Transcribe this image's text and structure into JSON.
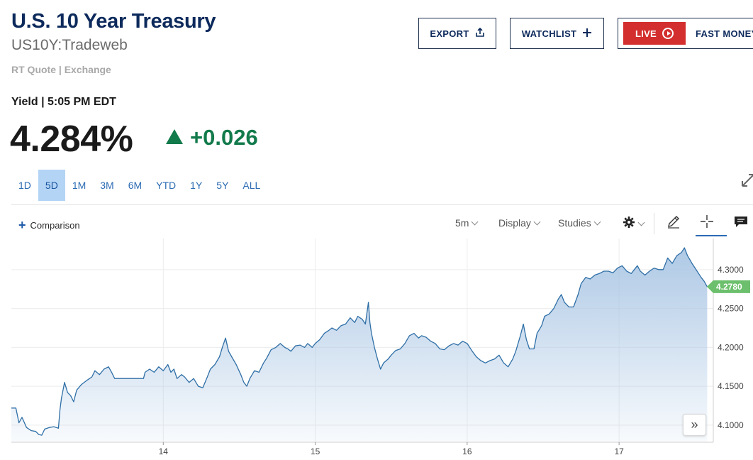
{
  "header": {
    "title": "U.S. 10 Year Treasury",
    "subtitle": "US10Y:Tradeweb",
    "quote_source": "RT Quote | Exchange"
  },
  "actions": {
    "export_label": "EXPORT",
    "watchlist_label": "WATCHLIST",
    "live_label": "LIVE",
    "fast_money_label": "FAST MONEY"
  },
  "quote": {
    "yield_label": "Yield | 5:05 PM EDT",
    "price": "4.284%",
    "change": "+0.026",
    "change_color": "#127a4b"
  },
  "range_tabs": [
    {
      "label": "1D",
      "active": false
    },
    {
      "label": "5D",
      "active": true
    },
    {
      "label": "1M",
      "active": false
    },
    {
      "label": "3M",
      "active": false
    },
    {
      "label": "6M",
      "active": false
    },
    {
      "label": "YTD",
      "active": false
    },
    {
      "label": "1Y",
      "active": false
    },
    {
      "label": "5Y",
      "active": false
    },
    {
      "label": "ALL",
      "active": false
    }
  ],
  "chart_toolbar": {
    "comparison_label": "Comparison",
    "interval_label": "5m",
    "display_label": "Display",
    "studies_label": "Studies",
    "icons": [
      "gear-icon",
      "pencil-icon",
      "crosshair-icon",
      "comment-icon"
    ]
  },
  "chart_data": {
    "type": "area",
    "x_tick_labels": [
      "14",
      "15",
      "16",
      "17"
    ],
    "y_tick_labels": [
      "4.3000",
      "4.2500",
      "4.2000",
      "4.1500",
      "4.1000"
    ],
    "y_ticks": [
      4.3,
      4.25,
      4.2,
      4.15,
      4.1
    ],
    "ylim": [
      4.078,
      4.34
    ],
    "xlim": [
      0,
      4.62
    ],
    "day_boundaries": [
      1.0,
      2.0,
      3.0,
      4.0
    ],
    "last_price_label": "4.2780",
    "last_price": 4.278,
    "line_color": "#2f6fa6",
    "fill_color": "#aac6e4",
    "tag_color": "#6cbf6c",
    "grid": true,
    "series": [
      {
        "points": [
          [
            0.0,
            4.122
          ],
          [
            0.03,
            4.122
          ],
          [
            0.05,
            4.103
          ],
          [
            0.07,
            4.11
          ],
          [
            0.1,
            4.097
          ],
          [
            0.13,
            4.093
          ],
          [
            0.16,
            4.092
          ],
          [
            0.18,
            4.088
          ],
          [
            0.2,
            4.087
          ],
          [
            0.22,
            4.095
          ],
          [
            0.25,
            4.097
          ],
          [
            0.28,
            4.098
          ],
          [
            0.31,
            4.096
          ],
          [
            0.32,
            4.12
          ],
          [
            0.33,
            4.135
          ],
          [
            0.35,
            4.155
          ],
          [
            0.37,
            4.142
          ],
          [
            0.39,
            4.138
          ],
          [
            0.41,
            4.13
          ],
          [
            0.43,
            4.145
          ],
          [
            0.46,
            4.152
          ],
          [
            0.5,
            4.158
          ],
          [
            0.53,
            4.162
          ],
          [
            0.55,
            4.17
          ],
          [
            0.58,
            4.165
          ],
          [
            0.61,
            4.172
          ],
          [
            0.64,
            4.175
          ],
          [
            0.66,
            4.168
          ],
          [
            0.68,
            4.16
          ],
          [
            0.75,
            4.16
          ],
          [
            0.8,
            4.16
          ],
          [
            0.87,
            4.16
          ],
          [
            0.88,
            4.168
          ],
          [
            0.91,
            4.172
          ],
          [
            0.94,
            4.168
          ],
          [
            0.97,
            4.175
          ],
          [
            1.0,
            4.17
          ],
          [
            1.03,
            4.178
          ],
          [
            1.05,
            4.168
          ],
          [
            1.07,
            4.172
          ],
          [
            1.09,
            4.16
          ],
          [
            1.12,
            4.165
          ],
          [
            1.14,
            4.162
          ],
          [
            1.17,
            4.155
          ],
          [
            1.2,
            4.16
          ],
          [
            1.23,
            4.15
          ],
          [
            1.26,
            4.148
          ],
          [
            1.29,
            4.162
          ],
          [
            1.31,
            4.172
          ],
          [
            1.34,
            4.178
          ],
          [
            1.37,
            4.188
          ],
          [
            1.39,
            4.201
          ],
          [
            1.41,
            4.212
          ],
          [
            1.43,
            4.195
          ],
          [
            1.45,
            4.188
          ],
          [
            1.48,
            4.178
          ],
          [
            1.51,
            4.165
          ],
          [
            1.53,
            4.155
          ],
          [
            1.55,
            4.15
          ],
          [
            1.57,
            4.16
          ],
          [
            1.6,
            4.17
          ],
          [
            1.63,
            4.168
          ],
          [
            1.66,
            4.18
          ],
          [
            1.68,
            4.186
          ],
          [
            1.71,
            4.197
          ],
          [
            1.74,
            4.2
          ],
          [
            1.77,
            4.205
          ],
          [
            1.8,
            4.2
          ],
          [
            1.82,
            4.198
          ],
          [
            1.84,
            4.195
          ],
          [
            1.87,
            4.202
          ],
          [
            1.9,
            4.203
          ],
          [
            1.93,
            4.2
          ],
          [
            1.95,
            4.205
          ],
          [
            1.98,
            4.2
          ],
          [
            2.0,
            4.205
          ],
          [
            2.03,
            4.21
          ],
          [
            2.06,
            4.218
          ],
          [
            2.09,
            4.222
          ],
          [
            2.11,
            4.225
          ],
          [
            2.14,
            4.222
          ],
          [
            2.17,
            4.228
          ],
          [
            2.2,
            4.23
          ],
          [
            2.23,
            4.238
          ],
          [
            2.26,
            4.232
          ],
          [
            2.28,
            4.24
          ],
          [
            2.31,
            4.236
          ],
          [
            2.33,
            4.23
          ],
          [
            2.35,
            4.258
          ],
          [
            2.36,
            4.232
          ],
          [
            2.37,
            4.218
          ],
          [
            2.39,
            4.2
          ],
          [
            2.41,
            4.185
          ],
          [
            2.43,
            4.172
          ],
          [
            2.45,
            4.18
          ],
          [
            2.48,
            4.185
          ],
          [
            2.5,
            4.19
          ],
          [
            2.53,
            4.196
          ],
          [
            2.56,
            4.198
          ],
          [
            2.59,
            4.205
          ],
          [
            2.62,
            4.215
          ],
          [
            2.65,
            4.218
          ],
          [
            2.68,
            4.212
          ],
          [
            2.7,
            4.215
          ],
          [
            2.73,
            4.213
          ],
          [
            2.76,
            4.208
          ],
          [
            2.79,
            4.205
          ],
          [
            2.82,
            4.198
          ],
          [
            2.85,
            4.197
          ],
          [
            2.88,
            4.202
          ],
          [
            2.91,
            4.205
          ],
          [
            2.94,
            4.203
          ],
          [
            2.97,
            4.208
          ],
          [
            3.0,
            4.205
          ],
          [
            3.03,
            4.196
          ],
          [
            3.06,
            4.188
          ],
          [
            3.09,
            4.183
          ],
          [
            3.12,
            4.18
          ],
          [
            3.15,
            4.183
          ],
          [
            3.18,
            4.185
          ],
          [
            3.21,
            4.19
          ],
          [
            3.24,
            4.18
          ],
          [
            3.27,
            4.175
          ],
          [
            3.3,
            4.185
          ],
          [
            3.32,
            4.195
          ],
          [
            3.35,
            4.215
          ],
          [
            3.37,
            4.23
          ],
          [
            3.39,
            4.21
          ],
          [
            3.41,
            4.198
          ],
          [
            3.44,
            4.198
          ],
          [
            3.46,
            4.218
          ],
          [
            3.49,
            4.228
          ],
          [
            3.51,
            4.24
          ],
          [
            3.54,
            4.243
          ],
          [
            3.57,
            4.25
          ],
          [
            3.6,
            4.262
          ],
          [
            3.62,
            4.268
          ],
          [
            3.64,
            4.258
          ],
          [
            3.67,
            4.252
          ],
          [
            3.7,
            4.252
          ],
          [
            3.73,
            4.268
          ],
          [
            3.75,
            4.282
          ],
          [
            3.78,
            4.29
          ],
          [
            3.81,
            4.288
          ],
          [
            3.84,
            4.293
          ],
          [
            3.87,
            4.295
          ],
          [
            3.9,
            4.298
          ],
          [
            3.93,
            4.298
          ],
          [
            3.96,
            4.296
          ],
          [
            3.99,
            4.302
          ],
          [
            4.02,
            4.305
          ],
          [
            4.05,
            4.298
          ],
          [
            4.08,
            4.295
          ],
          [
            4.1,
            4.3
          ],
          [
            4.12,
            4.305
          ],
          [
            4.14,
            4.298
          ],
          [
            4.17,
            4.293
          ],
          [
            4.2,
            4.298
          ],
          [
            4.23,
            4.302
          ],
          [
            4.26,
            4.3
          ],
          [
            4.29,
            4.3
          ],
          [
            4.32,
            4.315
          ],
          [
            4.35,
            4.308
          ],
          [
            4.38,
            4.318
          ],
          [
            4.41,
            4.322
          ],
          [
            4.43,
            4.328
          ],
          [
            4.45,
            4.318
          ],
          [
            4.48,
            4.308
          ],
          [
            4.5,
            4.302
          ],
          [
            4.52,
            4.296
          ],
          [
            4.54,
            4.29
          ],
          [
            4.56,
            4.285
          ],
          [
            4.58,
            4.278
          ]
        ]
      }
    ]
  }
}
